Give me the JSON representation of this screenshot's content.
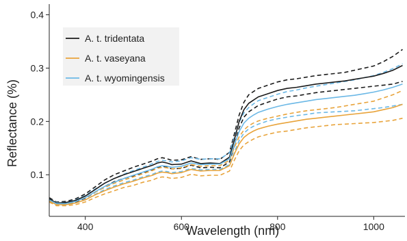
{
  "chart_data": {
    "type": "line",
    "title": "",
    "xlabel": "Wavelength (nm)",
    "ylabel": "Reflectance (%)",
    "xlim": [
      325,
      1065
    ],
    "ylim": [
      0.022,
      0.42
    ],
    "x_ticks": [
      400,
      600,
      800,
      1000
    ],
    "y_ticks": [
      0.1,
      0.2,
      0.3,
      0.4
    ],
    "x_tick_labels": [
      "400",
      "600",
      "800",
      "1000"
    ],
    "y_tick_labels": [
      "0.1",
      "0.2",
      "0.3",
      "0.4"
    ],
    "grid": false,
    "legend_position": "top-left",
    "note": "Solid lines are means; dashed lines show variability bands.",
    "series": [
      {
        "name": "A. t. tridentata",
        "color": "#1a1a1a",
        "x": [
          325,
          340,
          360,
          380,
          400,
          420,
          440,
          460,
          480,
          500,
          520,
          540,
          550,
          560,
          570,
          580,
          600,
          620,
          640,
          660,
          680,
          700,
          710,
          720,
          730,
          740,
          750,
          760,
          780,
          800,
          820,
          840,
          860,
          880,
          900,
          920,
          940,
          960,
          980,
          1000,
          1020,
          1040,
          1060
        ],
        "mean": [
          0.055,
          0.047,
          0.048,
          0.052,
          0.06,
          0.072,
          0.084,
          0.093,
          0.1,
          0.106,
          0.112,
          0.118,
          0.122,
          0.124,
          0.122,
          0.119,
          0.12,
          0.126,
          0.121,
          0.122,
          0.121,
          0.133,
          0.165,
          0.2,
          0.222,
          0.234,
          0.24,
          0.246,
          0.252,
          0.258,
          0.262,
          0.264,
          0.267,
          0.27,
          0.272,
          0.274,
          0.276,
          0.279,
          0.282,
          0.285,
          0.29,
          0.296,
          0.305
        ],
        "upper": [
          0.057,
          0.049,
          0.05,
          0.055,
          0.064,
          0.077,
          0.09,
          0.1,
          0.107,
          0.114,
          0.12,
          0.126,
          0.13,
          0.132,
          0.13,
          0.127,
          0.128,
          0.134,
          0.129,
          0.13,
          0.129,
          0.142,
          0.176,
          0.212,
          0.236,
          0.25,
          0.256,
          0.262,
          0.268,
          0.274,
          0.278,
          0.28,
          0.283,
          0.286,
          0.288,
          0.29,
          0.292,
          0.296,
          0.3,
          0.304,
          0.312,
          0.322,
          0.335
        ],
        "lower": [
          0.053,
          0.045,
          0.046,
          0.049,
          0.056,
          0.067,
          0.078,
          0.087,
          0.093,
          0.098,
          0.104,
          0.11,
          0.114,
          0.116,
          0.114,
          0.111,
          0.112,
          0.118,
          0.113,
          0.114,
          0.113,
          0.124,
          0.155,
          0.188,
          0.208,
          0.218,
          0.224,
          0.23,
          0.236,
          0.242,
          0.246,
          0.248,
          0.251,
          0.254,
          0.256,
          0.258,
          0.26,
          0.262,
          0.264,
          0.266,
          0.268,
          0.27,
          0.275
        ]
      },
      {
        "name": "A. t. vaseyana",
        "color": "#e8a33a",
        "x": [
          325,
          340,
          360,
          380,
          400,
          420,
          440,
          460,
          480,
          500,
          520,
          540,
          550,
          560,
          570,
          580,
          600,
          620,
          640,
          660,
          680,
          700,
          710,
          720,
          730,
          740,
          750,
          760,
          780,
          800,
          820,
          840,
          860,
          880,
          900,
          920,
          940,
          960,
          980,
          1000,
          1020,
          1040,
          1060
        ],
        "mean": [
          0.051,
          0.044,
          0.044,
          0.047,
          0.053,
          0.062,
          0.07,
          0.077,
          0.083,
          0.088,
          0.094,
          0.099,
          0.103,
          0.105,
          0.104,
          0.102,
          0.104,
          0.11,
          0.107,
          0.108,
          0.108,
          0.117,
          0.139,
          0.158,
          0.17,
          0.177,
          0.182,
          0.186,
          0.191,
          0.195,
          0.198,
          0.201,
          0.204,
          0.206,
          0.208,
          0.21,
          0.212,
          0.214,
          0.216,
          0.218,
          0.222,
          0.226,
          0.232
        ],
        "upper": [
          0.053,
          0.046,
          0.046,
          0.05,
          0.057,
          0.067,
          0.076,
          0.084,
          0.09,
          0.096,
          0.102,
          0.108,
          0.112,
          0.114,
          0.113,
          0.111,
          0.113,
          0.119,
          0.116,
          0.117,
          0.117,
          0.127,
          0.151,
          0.171,
          0.184,
          0.192,
          0.197,
          0.201,
          0.206,
          0.21,
          0.214,
          0.217,
          0.22,
          0.222,
          0.224,
          0.226,
          0.229,
          0.232,
          0.235,
          0.238,
          0.244,
          0.25,
          0.258
        ],
        "lower": [
          0.049,
          0.042,
          0.042,
          0.044,
          0.049,
          0.057,
          0.064,
          0.07,
          0.076,
          0.08,
          0.086,
          0.09,
          0.094,
          0.096,
          0.095,
          0.093,
          0.095,
          0.101,
          0.098,
          0.099,
          0.099,
          0.107,
          0.127,
          0.145,
          0.156,
          0.162,
          0.167,
          0.171,
          0.176,
          0.18,
          0.182,
          0.185,
          0.188,
          0.19,
          0.192,
          0.194,
          0.195,
          0.196,
          0.197,
          0.198,
          0.2,
          0.202,
          0.206
        ]
      },
      {
        "name": "A. t. wyomingensis",
        "color": "#6bb8e6",
        "x": [
          325,
          340,
          360,
          380,
          400,
          420,
          440,
          460,
          480,
          500,
          520,
          540,
          550,
          560,
          570,
          580,
          600,
          620,
          640,
          660,
          680,
          700,
          710,
          720,
          730,
          740,
          750,
          760,
          780,
          800,
          820,
          840,
          860,
          880,
          900,
          920,
          940,
          960,
          980,
          1000,
          1020,
          1040,
          1060
        ],
        "mean": [
          0.053,
          0.046,
          0.046,
          0.05,
          0.057,
          0.068,
          0.078,
          0.086,
          0.093,
          0.099,
          0.105,
          0.111,
          0.115,
          0.117,
          0.116,
          0.114,
          0.116,
          0.122,
          0.119,
          0.12,
          0.12,
          0.13,
          0.156,
          0.181,
          0.197,
          0.206,
          0.212,
          0.217,
          0.223,
          0.228,
          0.232,
          0.235,
          0.238,
          0.241,
          0.243,
          0.245,
          0.247,
          0.249,
          0.252,
          0.255,
          0.259,
          0.264,
          0.27
        ],
        "upper": [
          0.055,
          0.048,
          0.048,
          0.053,
          0.061,
          0.073,
          0.084,
          0.093,
          0.101,
          0.108,
          0.114,
          0.121,
          0.125,
          0.127,
          0.126,
          0.124,
          0.126,
          0.132,
          0.129,
          0.13,
          0.13,
          0.141,
          0.17,
          0.198,
          0.216,
          0.226,
          0.233,
          0.239,
          0.245,
          0.251,
          0.256,
          0.259,
          0.263,
          0.266,
          0.269,
          0.272,
          0.275,
          0.278,
          0.282,
          0.286,
          0.292,
          0.299,
          0.308
        ],
        "lower": [
          0.051,
          0.044,
          0.044,
          0.047,
          0.053,
          0.063,
          0.072,
          0.079,
          0.085,
          0.09,
          0.096,
          0.101,
          0.105,
          0.107,
          0.106,
          0.104,
          0.106,
          0.112,
          0.109,
          0.11,
          0.11,
          0.119,
          0.142,
          0.164,
          0.178,
          0.186,
          0.191,
          0.195,
          0.201,
          0.205,
          0.208,
          0.211,
          0.213,
          0.216,
          0.217,
          0.218,
          0.219,
          0.22,
          0.222,
          0.224,
          0.226,
          0.229,
          0.232
        ]
      }
    ]
  }
}
